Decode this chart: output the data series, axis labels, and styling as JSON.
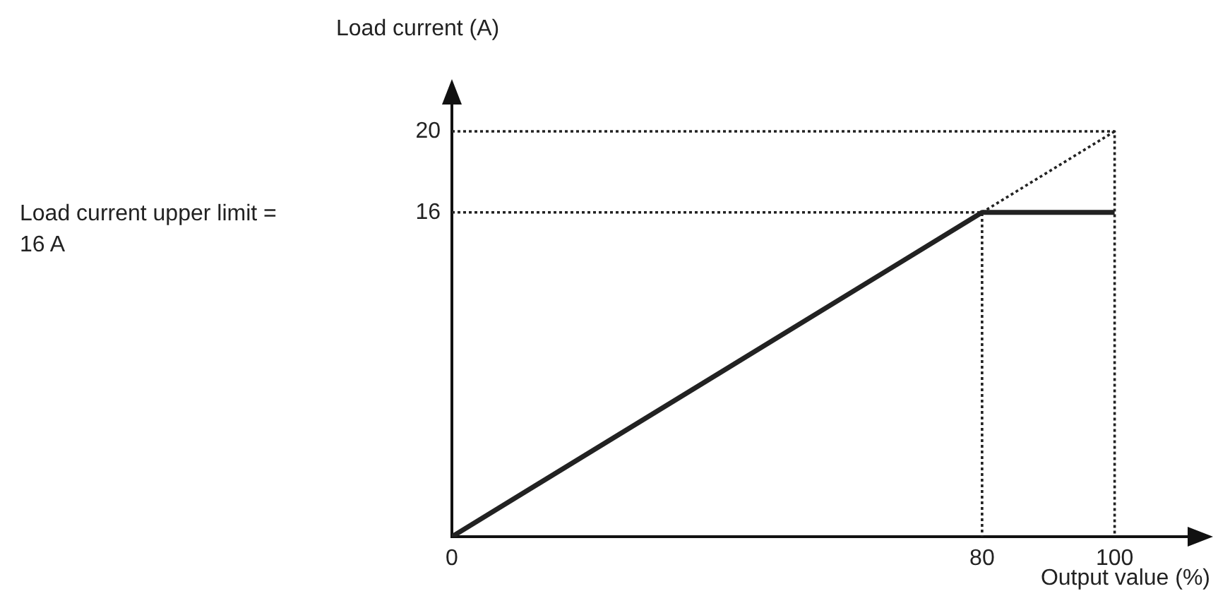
{
  "chart_data": {
    "type": "line",
    "xlabel": "Output value (%)",
    "ylabel": "Load current (A)",
    "annotations": [
      "Load current upper limit = 16 A"
    ],
    "xlim": [
      0,
      114
    ],
    "ylim": [
      0,
      22.3
    ],
    "xticks": [
      0,
      80,
      100
    ],
    "yticks": [
      16,
      20
    ],
    "grid": false,
    "legend": false,
    "marker": "none",
    "series": [
      {
        "color": "#222222",
        "line_style": "solid",
        "x": [
          0,
          80,
          100
        ],
        "values": [
          0,
          16,
          16
        ]
      },
      {
        "color": "#222222",
        "line_style": "dotted",
        "x": [
          0,
          100
        ],
        "values": [
          0,
          20
        ]
      },
      {
        "color": "#222222",
        "line_style": "dotted",
        "x": [
          0,
          100,
          100
        ],
        "values": [
          20,
          20,
          0
        ]
      },
      {
        "color": "#222222",
        "line_style": "dotted",
        "x": [
          0,
          80,
          80
        ],
        "values": [
          16,
          16,
          0
        ]
      }
    ]
  }
}
